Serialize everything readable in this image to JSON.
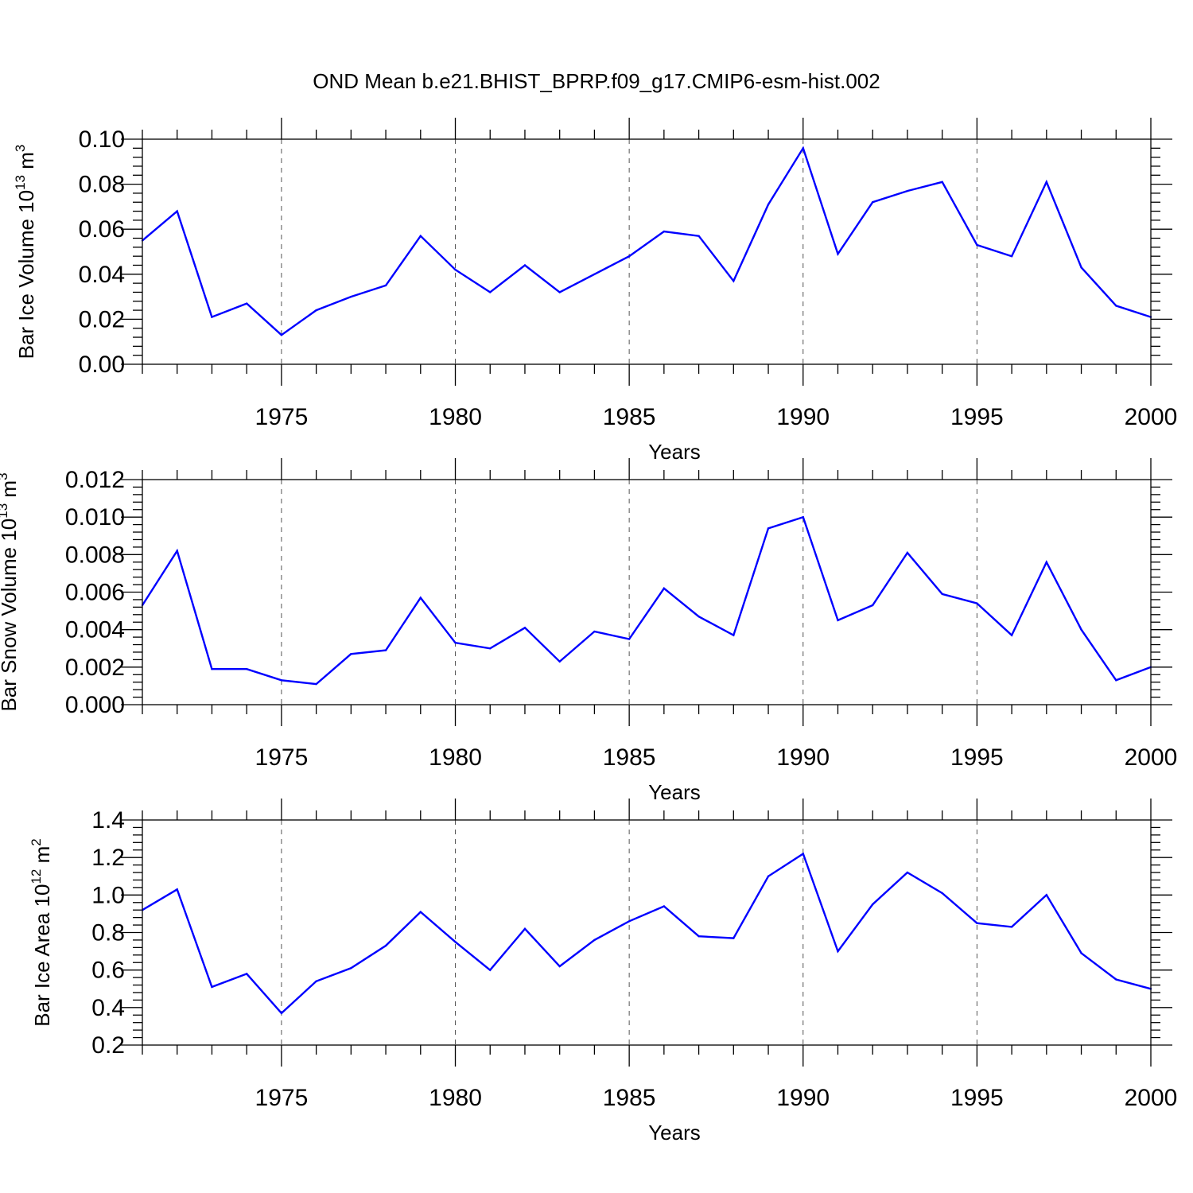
{
  "chart_data": [
    {
      "type": "line",
      "title": "OND Mean b.e21.BHIST_BPRP.f09_g17.CMIP6-esm-hist.002",
      "xlabel": "Years",
      "ylabel_main": "Bar Ice Volume 10",
      "ylabel_exp": "13",
      "ylabel_unit": "m",
      "ylabel_unit_exp": "3",
      "xlim": [
        1971,
        2000
      ],
      "ylim": [
        0,
        0.1
      ],
      "xticks": [
        "1975",
        "1980",
        "1985",
        "1990",
        "1995",
        "2000"
      ],
      "yticks": [
        "0.00",
        "0.02",
        "0.04",
        "0.06",
        "0.08",
        "0.10"
      ],
      "grid": "x-dashed",
      "line_color": "#0000ff",
      "x": [
        1971,
        1972,
        1973,
        1974,
        1975,
        1976,
        1977,
        1978,
        1979,
        1980,
        1981,
        1982,
        1983,
        1984,
        1985,
        1986,
        1987,
        1988,
        1989,
        1990,
        1991,
        1992,
        1993,
        1994,
        1995,
        1996,
        1997,
        1998,
        1999,
        2000
      ],
      "values": [
        0.055,
        0.068,
        0.021,
        0.027,
        0.013,
        0.024,
        0.03,
        0.035,
        0.057,
        0.042,
        0.032,
        0.044,
        0.032,
        0.04,
        0.048,
        0.059,
        0.057,
        0.037,
        0.071,
        0.096,
        0.049,
        0.072,
        0.077,
        0.081,
        0.053,
        0.048,
        0.081,
        0.043,
        0.026,
        0.021
      ]
    },
    {
      "type": "line",
      "xlabel": "Years",
      "ylabel_main": "Bar Snow Volume 10",
      "ylabel_exp": "13",
      "ylabel_unit": "m",
      "ylabel_unit_exp": "3",
      "xlim": [
        1971,
        2000
      ],
      "ylim": [
        0,
        0.012
      ],
      "xticks": [
        "1975",
        "1980",
        "1985",
        "1990",
        "1995",
        "2000"
      ],
      "yticks": [
        "0.000",
        "0.002",
        "0.004",
        "0.006",
        "0.008",
        "0.010",
        "0.012"
      ],
      "grid": "x-dashed",
      "line_color": "#0000ff",
      "x": [
        1971,
        1972,
        1973,
        1974,
        1975,
        1976,
        1977,
        1978,
        1979,
        1980,
        1981,
        1982,
        1983,
        1984,
        1985,
        1986,
        1987,
        1988,
        1989,
        1990,
        1991,
        1992,
        1993,
        1994,
        1995,
        1996,
        1997,
        1998,
        1999,
        2000
      ],
      "values": [
        0.0053,
        0.0082,
        0.0019,
        0.0019,
        0.0013,
        0.0011,
        0.0027,
        0.0029,
        0.0057,
        0.0033,
        0.003,
        0.0041,
        0.0023,
        0.0039,
        0.0035,
        0.0062,
        0.0047,
        0.0037,
        0.0094,
        0.01,
        0.0045,
        0.0053,
        0.0081,
        0.0059,
        0.0054,
        0.0037,
        0.0076,
        0.004,
        0.0013,
        0.002
      ]
    },
    {
      "type": "line",
      "xlabel": "Years",
      "ylabel_main": "Bar Ice Area 10",
      "ylabel_exp": "12",
      "ylabel_unit": "m",
      "ylabel_unit_exp": "2",
      "xlim": [
        1971,
        2000
      ],
      "ylim": [
        0.2,
        1.4
      ],
      "xticks": [
        "1975",
        "1980",
        "1985",
        "1990",
        "1995",
        "2000"
      ],
      "yticks": [
        "0.2",
        "0.4",
        "0.6",
        "0.8",
        "1.0",
        "1.2",
        "1.4"
      ],
      "grid": "x-dashed",
      "line_color": "#0000ff",
      "x": [
        1971,
        1972,
        1973,
        1974,
        1975,
        1976,
        1977,
        1978,
        1979,
        1980,
        1981,
        1982,
        1983,
        1984,
        1985,
        1986,
        1987,
        1988,
        1989,
        1990,
        1991,
        1992,
        1993,
        1994,
        1995,
        1996,
        1997,
        1998,
        1999,
        2000
      ],
      "values": [
        0.92,
        1.03,
        0.51,
        0.58,
        0.37,
        0.54,
        0.61,
        0.73,
        0.91,
        0.75,
        0.6,
        0.82,
        0.62,
        0.76,
        0.86,
        0.94,
        0.78,
        0.77,
        1.1,
        1.22,
        0.7,
        0.95,
        1.12,
        1.01,
        0.85,
        0.83,
        1.0,
        0.69,
        0.55,
        0.5
      ]
    }
  ]
}
